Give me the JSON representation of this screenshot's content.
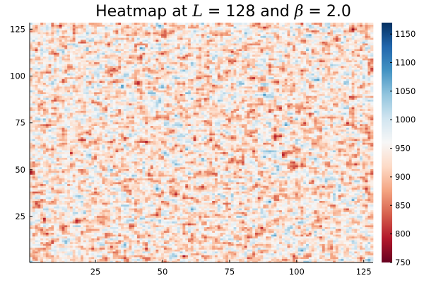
{
  "chart_data": {
    "type": "heatmap",
    "title": {
      "prefix": "Heatmap at ",
      "var1": "L",
      "mid": " = 128 and ",
      "var2": "β",
      "suffix": " = 2.0"
    },
    "grid_size": [
      128,
      128
    ],
    "x_range": [
      1,
      128
    ],
    "y_range": [
      1,
      128
    ],
    "x_ticks": [
      25,
      50,
      75,
      100,
      125
    ],
    "y_ticks": [
      25,
      50,
      75,
      100,
      125
    ],
    "value_range": [
      750,
      1170
    ],
    "colorbar_ticks": [
      750,
      800,
      850,
      900,
      950,
      1000,
      1050,
      1100,
      1150
    ],
    "colormap": [
      "#67001f",
      "#b2182b",
      "#d6604d",
      "#f4a582",
      "#fddbc7",
      "#f7f7f7",
      "#d1e5f0",
      "#92c5de",
      "#4393c3",
      "#2166ac",
      "#053061"
    ],
    "grid": false,
    "colorbar": "right"
  }
}
